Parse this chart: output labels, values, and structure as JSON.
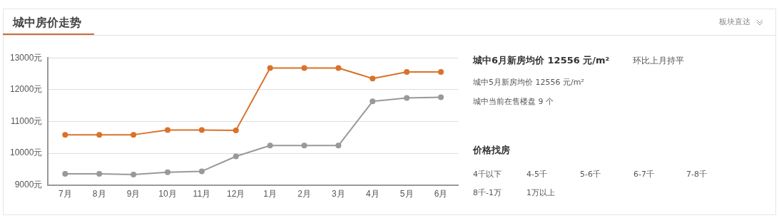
{
  "chart_data": {
    "type": "line",
    "title": "城中房价走势",
    "categories": [
      "7月",
      "8月",
      "9月",
      "10月",
      "11月",
      "12月",
      "1月",
      "2月",
      "3月",
      "4月",
      "5月",
      "6月"
    ],
    "series": [
      {
        "color": "#d9722a",
        "values": [
          10580,
          10580,
          10580,
          10730,
          10730,
          10720,
          12680,
          12680,
          12680,
          12350,
          12556,
          12556
        ]
      },
      {
        "color": "#999999",
        "values": [
          9350,
          9350,
          9330,
          9400,
          9430,
          9900,
          10240,
          10240,
          10240,
          11630,
          11740,
          11760
        ]
      }
    ],
    "ylim": [
      9000,
      13000
    ],
    "yticks": [
      {
        "value": 9000,
        "label": "9000元"
      },
      {
        "value": 10000,
        "label": "10000元"
      },
      {
        "value": 11000,
        "label": "11000元"
      },
      {
        "value": 12000,
        "label": "12000元"
      },
      {
        "value": 13000,
        "label": "13000元"
      }
    ],
    "grid": "y",
    "legend": false,
    "marker": "circle",
    "line_style": "solid",
    "annotations": [
      "板块直达",
      "城中6月新房均价 12556 元/m²",
      "环比上月持平",
      "城中5月新房均价 12556 元/m²",
      "城中当前在售楼盘 9 个",
      "价格找房",
      "4千以下",
      "4-5千",
      "5-6千",
      "6-7千",
      "7-8千",
      "8千-1万",
      "1万以上"
    ]
  }
}
